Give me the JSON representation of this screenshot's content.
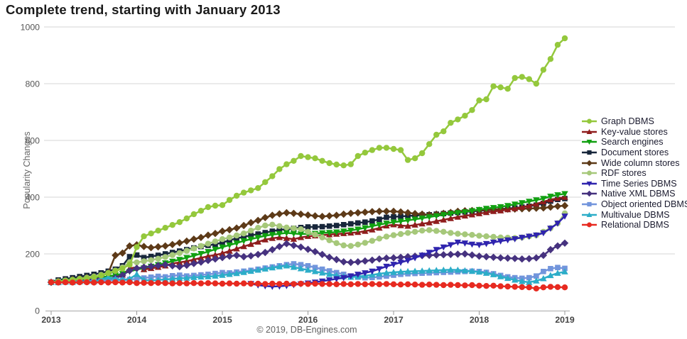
{
  "title": "Complete trend, starting with January 2013",
  "footer": "© 2019, DB-Engines.com",
  "chart_data": {
    "type": "line",
    "title": "Complete trend, starting with January 2013",
    "xlabel": "",
    "ylabel": "Popularity Changes",
    "ylim": [
      0,
      1000
    ],
    "yticks": [
      0,
      200,
      400,
      600,
      800,
      1000
    ],
    "xticks": [
      "2013",
      "2014",
      "2015",
      "2016",
      "2017",
      "2018",
      "2019"
    ],
    "x_start": "January 2013",
    "x_interval": "monthly",
    "grid": true,
    "legend_position": "right",
    "colors": {
      "grid": "#d4d4d4",
      "axis": "#b5b5b5",
      "tick": "#999999",
      "tick_label": "#555555",
      "year_label": "#444444"
    },
    "series": [
      {
        "name": "Graph DBMS",
        "color": "#94C83C",
        "marker": "circle",
        "values": [
          100,
          103,
          105,
          108,
          111,
          114,
          118,
          124,
          132,
          140,
          148,
          162,
          224,
          262,
          272,
          282,
          292,
          302,
          312,
          325,
          340,
          352,
          365,
          370,
          372,
          390,
          405,
          416,
          424,
          432,
          453,
          474,
          499,
          516,
          528,
          545,
          541,
          537,
          528,
          520,
          515,
          512,
          516,
          545,
          557,
          566,
          574,
          574,
          570,
          566,
          531,
          537,
          555,
          587,
          620,
          632,
          662,
          674,
          687,
          707,
          741,
          745,
          791,
          787,
          782,
          820,
          824,
          816,
          800,
          849,
          887,
          937,
          960
        ]
      },
      {
        "name": "Key-value stores",
        "color": "#8F1D1D",
        "marker": "triangle-up",
        "values": [
          100,
          101,
          102,
          104,
          105,
          107,
          109,
          111,
          114,
          118,
          126,
          149,
          153,
          145,
          149,
          153,
          158,
          166,
          170,
          174,
          180,
          186,
          192,
          196,
          202,
          210,
          218,
          226,
          234,
          242,
          250,
          255,
          258,
          255,
          252,
          258,
          262,
          264,
          266,
          268,
          270,
          272,
          274,
          276,
          280,
          285,
          291,
          299,
          303,
          300,
          298,
          302,
          306,
          310,
          315,
          320,
          325,
          330,
          334,
          338,
          342,
          346,
          350,
          352,
          356,
          360,
          365,
          370,
          376,
          384,
          391,
          396,
          400
        ]
      },
      {
        "name": "Search engines",
        "color": "#11A011",
        "marker": "triangle-down",
        "values": [
          100,
          102,
          104,
          106,
          108,
          111,
          114,
          117,
          121,
          125,
          130,
          138,
          145,
          150,
          156,
          162,
          168,
          174,
          180,
          187,
          194,
          201,
          208,
          216,
          224,
          231,
          238,
          246,
          252,
          258,
          264,
          268,
          271,
          274,
          272,
          270,
          271,
          272,
          274,
          275,
          277,
          280,
          283,
          287,
          292,
          298,
          303,
          308,
          312,
          315,
          318,
          322,
          326,
          330,
          334,
          338,
          342,
          345,
          348,
          352,
          356,
          360,
          363,
          366,
          370,
          375,
          380,
          385,
          390,
          395,
          403,
          408,
          412
        ]
      },
      {
        "name": "Document stores",
        "color": "#17263B",
        "marker": "square",
        "values": [
          100,
          108,
          112,
          116,
          120,
          124,
          128,
          133,
          139,
          146,
          158,
          190,
          196,
          187,
          191,
          195,
          200,
          205,
          210,
          215,
          221,
          226,
          230,
          234,
          240,
          248,
          255,
          260,
          265,
          270,
          275,
          280,
          285,
          287,
          290,
          293,
          295,
          295,
          296,
          298,
          300,
          303,
          306,
          309,
          312,
          316,
          322,
          329,
          331,
          332,
          334,
          335,
          337,
          338,
          340,
          342,
          344,
          346,
          348,
          350,
          352,
          354,
          356,
          358,
          360,
          362,
          365,
          368,
          372,
          378,
          386,
          392,
          395
        ]
      },
      {
        "name": "Wide column stores",
        "color": "#5D3A18",
        "marker": "diamond",
        "values": [
          100,
          104,
          107,
          110,
          114,
          117,
          120,
          124,
          132,
          195,
          203,
          228,
          232,
          226,
          222,
          225,
          228,
          233,
          239,
          245,
          252,
          258,
          266,
          272,
          280,
          285,
          291,
          300,
          310,
          318,
          328,
          336,
          341,
          345,
          343,
          340,
          337,
          334,
          332,
          334,
          336,
          340,
          343,
          345,
          347,
          349,
          350,
          350,
          350,
          348,
          345,
          342,
          340,
          338,
          340,
          343,
          346,
          350,
          352,
          353,
          354,
          355,
          356,
          357,
          358,
          358,
          359,
          360,
          361,
          362,
          365,
          368,
          370
        ]
      },
      {
        "name": "RDF stores",
        "color": "#A6C87A",
        "marker": "circle",
        "values": [
          100,
          103,
          106,
          109,
          112,
          116,
          120,
          126,
          133,
          141,
          152,
          170,
          170,
          174,
          178,
          183,
          189,
          196,
          203,
          211,
          219,
          228,
          236,
          244,
          252,
          258,
          265,
          272,
          282,
          292,
          300,
          303,
          298,
          293,
          290,
          287,
          278,
          268,
          258,
          248,
          238,
          230,
          228,
          233,
          239,
          246,
          254,
          261,
          266,
          270,
          274,
          278,
          282,
          284,
          281,
          278,
          274,
          271,
          269,
          267,
          264,
          262,
          260,
          258,
          257,
          256,
          258,
          262,
          266,
          278,
          291,
          308,
          343
        ]
      },
      {
        "name": "Time Series DBMS",
        "color": "#2F24AE",
        "marker": "triangle-down",
        "values": [
          null,
          null,
          null,
          null,
          null,
          null,
          null,
          null,
          null,
          null,
          null,
          null,
          null,
          null,
          null,
          null,
          null,
          null,
          null,
          null,
          null,
          null,
          null,
          null,
          null,
          null,
          null,
          null,
          95,
          90,
          87,
          85,
          86,
          88,
          91,
          94,
          97,
          100,
          104,
          108,
          112,
          116,
          122,
          128,
          133,
          139,
          147,
          156,
          163,
          170,
          177,
          186,
          195,
          205,
          215,
          224,
          232,
          241,
          238,
          234,
          232,
          236,
          241,
          245,
          249,
          253,
          258,
          262,
          266,
          274,
          290,
          308,
          333
        ]
      },
      {
        "name": "Native XML DBMS",
        "color": "#46327F",
        "marker": "diamond",
        "values": [
          100,
          102,
          104,
          103,
          106,
          108,
          111,
          113,
          112,
          116,
          125,
          141,
          149,
          153,
          156,
          159,
          162,
          158,
          155,
          160,
          166,
          171,
          177,
          182,
          187,
          192,
          195,
          190,
          193,
          198,
          205,
          215,
          226,
          236,
          230,
          224,
          216,
          208,
          198,
          188,
          180,
          172,
          170,
          172,
          175,
          178,
          182,
          185,
          186,
          188,
          190,
          192,
          194,
          195,
          196,
          197,
          198,
          199,
          200,
          196,
          192,
          190,
          188,
          186,
          185,
          184,
          182,
          183,
          186,
          195,
          215,
          228,
          238
        ]
      },
      {
        "name": "Object oriented DBMS",
        "color": "#7295DC",
        "marker": "square",
        "values": [
          100,
          102,
          101,
          103,
          102,
          104,
          105,
          104,
          106,
          108,
          107,
          110,
          112,
          115,
          118,
          121,
          119,
          123,
          125,
          122,
          124,
          126,
          128,
          131,
          134,
          133,
          136,
          139,
          142,
          146,
          150,
          154,
          158,
          162,
          165,
          162,
          158,
          152,
          146,
          140,
          134,
          128,
          122,
          118,
          116,
          117,
          119,
          122,
          125,
          128,
          130,
          131,
          132,
          133,
          134,
          135,
          136,
          137,
          138,
          139,
          138,
          135,
          130,
          124,
          119,
          116,
          114,
          116,
          122,
          138,
          148,
          152,
          149
        ]
      },
      {
        "name": "Multivalue DBMS",
        "color": "#2CADC8",
        "marker": "triangle-up",
        "values": [
          100,
          99,
          101,
          100,
          102,
          103,
          102,
          110,
          118,
          112,
          108,
          112,
          128,
          108,
          106,
          108,
          110,
          112,
          114,
          115,
          117,
          119,
          120,
          122,
          125,
          128,
          131,
          135,
          139,
          143,
          147,
          151,
          155,
          158,
          153,
          148,
          143,
          138,
          133,
          128,
          124,
          120,
          118,
          120,
          123,
          126,
          130,
          133,
          135,
          137,
          138,
          139,
          140,
          141,
          142,
          143,
          144,
          143,
          141,
          139,
          136,
          132,
          127,
          120,
          114,
          108,
          103,
          100,
          105,
          113,
          124,
          132,
          137
        ]
      },
      {
        "name": "Relational DBMS",
        "color": "#E72A20",
        "marker": "circle",
        "values": [
          100,
          99,
          100,
          99,
          100,
          100,
          99,
          100,
          99,
          100,
          99,
          100,
          97,
          98,
          97,
          98,
          97,
          96,
          97,
          96,
          97,
          96,
          97,
          96,
          95,
          96,
          95,
          96,
          95,
          95,
          94,
          95,
          94,
          95,
          94,
          95,
          94,
          95,
          94,
          94,
          93,
          94,
          93,
          94,
          93,
          94,
          93,
          94,
          93,
          92,
          93,
          92,
          91,
          92,
          91,
          90,
          91,
          90,
          89,
          90,
          88,
          87,
          88,
          86,
          85,
          84,
          83,
          82,
          78,
          82,
          84,
          83,
          82
        ]
      }
    ]
  }
}
